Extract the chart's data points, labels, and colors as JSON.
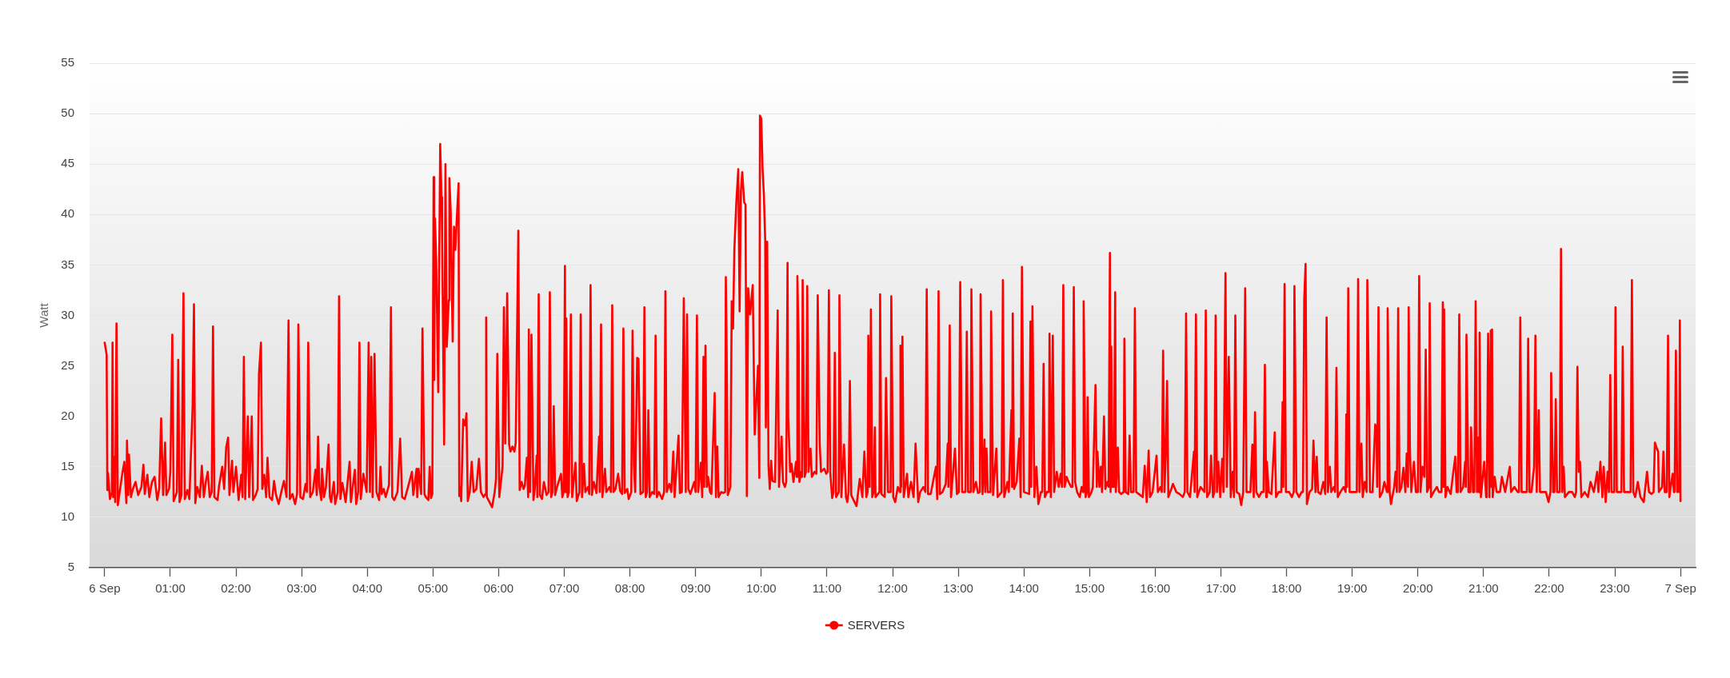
{
  "chart_data": {
    "type": "line",
    "ylabel": "Watt",
    "x": [
      0,
      0.03,
      0.04,
      0.05,
      0.08,
      0.11,
      0.12,
      0.13,
      0.15,
      0.16,
      0.18,
      0.2,
      0.27,
      0.3,
      0.33,
      0.34,
      0.36,
      0.37,
      0.4,
      0.43,
      0.47,
      0.51,
      0.56,
      0.59,
      0.61,
      0.65,
      0.68,
      0.72,
      0.76,
      0.8,
      0.83,
      0.86,
      0.89,
      0.92,
      0.94,
      0.98,
      1,
      1.03,
      1.05,
      1.1,
      1.12,
      1.14,
      1.17,
      1.2,
      1.22,
      1.26,
      1.29,
      1.34,
      1.36,
      1.38,
      1.41,
      1.45,
      1.48,
      1.51,
      1.54,
      1.57,
      1.6,
      1.63,
      1.65,
      1.67,
      1.72,
      1.74,
      1.79,
      1.82,
      1.85,
      1.88,
      1.9,
      1.94,
      1.96,
      2,
      2.04,
      2.08,
      2.1,
      2.12,
      2.14,
      2.18,
      2.2,
      2.24,
      2.26,
      2.3,
      2.33,
      2.35,
      2.38,
      2.4,
      2.43,
      2.46,
      2.48,
      2.51,
      2.55,
      2.58,
      2.61,
      2.65,
      2.69,
      2.73,
      2.77,
      2.8,
      2.82,
      2.86,
      2.9,
      2.93,
      2.95,
      2.98,
      3.02,
      3.06,
      3.08,
      3.1,
      3.13,
      3.17,
      3.21,
      3.23,
      3.25,
      3.27,
      3.3,
      3.31,
      3.34,
      3.37,
      3.41,
      3.43,
      3.45,
      3.49,
      3.51,
      3.55,
      3.57,
      3.59,
      3.62,
      3.67,
      3.73,
      3.75,
      3.81,
      3.83,
      3.86,
      3.88,
      3.9,
      3.94,
      3.99,
      4.02,
      4.04,
      4.06,
      4.08,
      4.11,
      4.14,
      4.18,
      4.2,
      4.22,
      4.25,
      4.28,
      4.33,
      4.34,
      4.36,
      4.38,
      4.41,
      4.46,
      4.5,
      4.53,
      4.57,
      4.62,
      4.68,
      4.7,
      4.75,
      4.76,
      4.78,
      4.82,
      4.84,
      4.87,
      4.89,
      4.93,
      4.95,
      4.97,
      4.99,
      5.01,
      5.02,
      5.03,
      5.05,
      5.08,
      5.09,
      5.11,
      5.13,
      5.14,
      5.17,
      5.19,
      5.21,
      5.24,
      5.25,
      5.27,
      5.3,
      5.32,
      5.34,
      5.36,
      5.39,
      5.4,
      5.41,
      5.43,
      5.46,
      5.49,
      5.51,
      5.53,
      5.56,
      5.59,
      5.62,
      5.66,
      5.7,
      5.73,
      5.77,
      5.8,
      5.81,
      5.82,
      5.86,
      5.9,
      5.94,
      5.96,
      5.98,
      6.01,
      6.04,
      6.06,
      6.08,
      6.1,
      6.13,
      6.16,
      6.18,
      6.21,
      6.24,
      6.26,
      6.3,
      6.32,
      6.35,
      6.38,
      6.4,
      6.43,
      6.45,
      6.46,
      6.48,
      6.5,
      6.53,
      6.55,
      6.58,
      6.59,
      6.61,
      6.63,
      6.66,
      6.69,
      6.73,
      6.76,
      6.78,
      6.8,
      6.82,
      6.84,
      6.86,
      6.89,
      6.95,
      6.97,
      6.99,
      7.01,
      7.02,
      7.03,
      7.05,
      7.07,
      7.1,
      7.12,
      7.17,
      7.19,
      7.23,
      7.25,
      7.27,
      7.3,
      7.32,
      7.36,
      7.38,
      7.4,
      7.42,
      7.45,
      7.49,
      7.53,
      7.54,
      7.56,
      7.58,
      7.62,
      7.64,
      7.69,
      7.71,
      7.73,
      7.75,
      7.78,
      7.82,
      7.85,
      7.88,
      7.9,
      7.92,
      7.96,
      7.98,
      8.02,
      8.04,
      8.06,
      8.08,
      8.11,
      8.13,
      8.16,
      8.2,
      8.22,
      8.24,
      8.26,
      8.28,
      8.3,
      8.34,
      8.37,
      8.39,
      8.41,
      8.44,
      8.49,
      8.52,
      8.54,
      8.56,
      8.6,
      8.63,
      8.66,
      8.68,
      8.74,
      8.76,
      8.79,
      8.82,
      8.85,
      8.87,
      8.89,
      8.92,
      8.98,
      9,
      9.02,
      9.04,
      9.08,
      9.1,
      9.12,
      9.13,
      9.15,
      9.17,
      9.19,
      9.22,
      9.24,
      9.27,
      9.29,
      9.31,
      9.33,
      9.35,
      9.39,
      9.42,
      9.45,
      9.46,
      9.47,
      9.49,
      9.53,
      9.55,
      9.57,
      9.59,
      9.62,
      9.65,
      9.67,
      9.69,
      9.71,
      9.74,
      9.76,
      9.78,
      9.8,
      9.83,
      9.87,
      9.9,
      9.95,
      9.97,
      9.98,
      10,
      10.02,
      10.04,
      10.06,
      10.07,
      10.09,
      10.11,
      10.13,
      10.15,
      10.17,
      10.21,
      10.25,
      10.27,
      10.31,
      10.33,
      10.36,
      10.38,
      10.4,
      10.41,
      10.44,
      10.46,
      10.49,
      10.53,
      10.54,
      10.55,
      10.57,
      10.58,
      10.61,
      10.62,
      10.63,
      10.66,
      10.68,
      10.7,
      10.72,
      10.75,
      10.77,
      10.81,
      10.84,
      10.86,
      10.89,
      10.91,
      10.96,
      10.99,
      11.01,
      11.03,
      11.05,
      11.08,
      11.1,
      11.12,
      11.14,
      11.18,
      11.19,
      11.22,
      11.26,
      11.29,
      11.31,
      11.33,
      11.35,
      11.37,
      11.42,
      11.45,
      11.5,
      11.54,
      11.57,
      11.6,
      11.62,
      11.63,
      11.65,
      11.67,
      11.69,
      11.71,
      11.73,
      11.74,
      11.8,
      11.81,
      11.83,
      11.88,
      11.9,
      11.93,
      11.97,
      11.98,
      12.01,
      12.04,
      12.08,
      12.11,
      12.12,
      12.13,
      12.15,
      12.17,
      12.22,
      12.24,
      12.28,
      12.32,
      12.35,
      12.39,
      12.42,
      12.47,
      12.5,
      12.52,
      12.54,
      12.58,
      12.66,
      12.68,
      12.7,
      12.72,
      12.76,
      12.81,
      12.84,
      12.85,
      12.87,
      12.89,
      12.95,
      12.98,
      13.01,
      13.03,
      13.06,
      13.11,
      13.13,
      13.15,
      13.19,
      13.2,
      13.23,
      13.27,
      13.3,
      13.33,
      13.34,
      13.37,
      13.4,
      13.41,
      13.43,
      13.45,
      13.49,
      13.5,
      13.53,
      13.58,
      13.6,
      13.66,
      13.68,
      13.7,
      13.75,
      13.77,
      13.81,
      13.82,
      13.83,
      13.85,
      13.89,
      13.93,
      13.95,
      13.97,
      14,
      14.08,
      14.1,
      14.11,
      14.13,
      14.16,
      14.19,
      14.22,
      14.26,
      14.28,
      14.3,
      14.32,
      14.35,
      14.38,
      14.39,
      14.41,
      14.44,
      14.46,
      14.5,
      14.53,
      14.56,
      14.58,
      14.6,
      14.62,
      14.65,
      14.68,
      14.72,
      14.74,
      14.76,
      14.78,
      14.81,
      14.85,
      14.88,
      14.9,
      14.91,
      14.94,
      14.96,
      14.97,
      14.99,
      15.03,
      15.05,
      15.09,
      15.11,
      15.12,
      15.15,
      15.17,
      15.19,
      15.22,
      15.24,
      15.27,
      15.29,
      15.31,
      15.32,
      15.33,
      15.35,
      15.37,
      15.39,
      15.4,
      15.43,
      15.45,
      15.48,
      15.52,
      15.53,
      15.55,
      15.59,
      15.61,
      15.63,
      15.67,
      15.69,
      15.71,
      15.75,
      15.81,
      15.84,
      15.87,
      15.9,
      15.92,
      15.96,
      16.02,
      16.04,
      16.08,
      16.1,
      16.12,
      16.14,
      16.16,
      16.18,
      16.2,
      16.24,
      16.27,
      16.32,
      16.37,
      16.42,
      16.45,
      16.47,
      16.49,
      16.53,
      16.59,
      16.6,
      16.62,
      16.64,
      16.69,
      16.75,
      16.77,
      16.79,
      16.83,
      16.85,
      16.88,
      16.9,
      16.92,
      16.94,
      16.96,
      16.99,
      17.02,
      17.04,
      17.07,
      17.09,
      17.12,
      17.15,
      17.18,
      17.2,
      17.22,
      17.24,
      17.28,
      17.31,
      17.34,
      17.37,
      17.39,
      17.45,
      17.48,
      17.5,
      17.52,
      17.54,
      17.58,
      17.62,
      17.65,
      17.67,
      17.69,
      17.7,
      17.73,
      17.77,
      17.82,
      17.84,
      17.88,
      17.92,
      17.94,
      17.95,
      17.97,
      17.99,
      18.04,
      18.08,
      18.11,
      18.12,
      18.15,
      18.19,
      18.23,
      18.25,
      18.27,
      18.29,
      18.31,
      18.35,
      18.39,
      18.41,
      18.44,
      18.46,
      18.48,
      18.52,
      18.56,
      18.59,
      18.61,
      18.63,
      18.66,
      18.68,
      18.72,
      18.74,
      18.76,
      18.78,
      18.82,
      18.87,
      18.9,
      18.91,
      18.92,
      18.94,
      18.96,
      19.01,
      19.07,
      19.09,
      19.11,
      19.14,
      19.16,
      19.19,
      19.22,
      19.23,
      19.26,
      19.27,
      19.31,
      19.35,
      19.37,
      19.38,
      19.4,
      19.42,
      19.46,
      19.49,
      19.53,
      19.54,
      19.57,
      19.59,
      19.64,
      19.66,
      19.68,
      19.7,
      19.72,
      19.75,
      19.78,
      19.81,
      19.83,
      19.85,
      19.86,
      19.88,
      19.9,
      19.94,
      19.97,
      20,
      20.02,
      20.04,
      20.07,
      20.1,
      20.12,
      20.14,
      20.17,
      20.18,
      20.2,
      20.24,
      20.29,
      20.32,
      20.36,
      20.38,
      20.39,
      20.4,
      20.42,
      20.45,
      20.5,
      20.54,
      20.57,
      20.59,
      20.61,
      20.63,
      20.65,
      20.69,
      20.72,
      20.73,
      20.74,
      20.77,
      20.8,
      20.81,
      20.84,
      20.86,
      20.88,
      20.9,
      20.92,
      20.93,
      20.94,
      20.96,
      21.01,
      21.04,
      21.05,
      21.07,
      21.09,
      21.11,
      21.12,
      21.13,
      21.14,
      21.17,
      21.2,
      21.25,
      21.28,
      21.33,
      21.4,
      21.42,
      21.47,
      21.52,
      21.54,
      21.56,
      21.58,
      21.63,
      21.66,
      21.68,
      21.7,
      21.73,
      21.77,
      21.79,
      21.81,
      21.84,
      21.86,
      21.9,
      21.95,
      21.99,
      22.02,
      22.03,
      22.06,
      22.08,
      22.1,
      22.12,
      22.16,
      22.18,
      22.2,
      22.22,
      22.24,
      22.3,
      22.35,
      22.39,
      22.41,
      22.43,
      22.45,
      22.47,
      22.49,
      22.54,
      22.59,
      22.63,
      22.68,
      22.73,
      22.75,
      22.78,
      22.81,
      22.83,
      22.86,
      22.89,
      22.91,
      22.93,
      22.95,
      22.99,
      23.01,
      23.03,
      23.07,
      23.1,
      23.12,
      23.14,
      23.18,
      23.24,
      23.26,
      23.28,
      23.31,
      23.35,
      23.39,
      23.44,
      23.49,
      23.52,
      23.56,
      23.59,
      23.61,
      23.64,
      23.66,
      23.67,
      23.72,
      23.74,
      23.76,
      23.79,
      23.81,
      23.83,
      23.88,
      23.9,
      23.91,
      23.93,
      23.95,
      23.97,
      23.98,
      23.99,
      24
    ],
    "series": [
      {
        "name": "SERVERS",
        "color": "#ff0000",
        "values": [
          27.3,
          26.1,
          12.7,
          14.4,
          11.8,
          12.5,
          27.3,
          12,
          16,
          11.5,
          29.2,
          11.2,
          14.4,
          15.5,
          11.4,
          17.6,
          12.2,
          16.2,
          12,
          12.8,
          13.5,
          12.2,
          13,
          15.2,
          12.3,
          14.2,
          12,
          13.5,
          14,
          11.7,
          12.8,
          19.8,
          12.2,
          17.4,
          12.2,
          12.8,
          14.5,
          28.1,
          11.6,
          12.5,
          25.6,
          11.5,
          12.2,
          32.2,
          11.8,
          12.7,
          11.8,
          21.1,
          31.1,
          11.4,
          13,
          12,
          15.1,
          12,
          13.5,
          14.5,
          12,
          12.5,
          28.9,
          12,
          11.7,
          13,
          15,
          12.8,
          16.9,
          17.9,
          12.2,
          15.6,
          12.5,
          15,
          11.7,
          14.2,
          12,
          25.9,
          11.8,
          20,
          12,
          20,
          11.7,
          12.2,
          12.8,
          24.2,
          27.3,
          12.8,
          14.2,
          12,
          15.9,
          12,
          11.7,
          13.6,
          12.2,
          11.3,
          12.5,
          13.6,
          12,
          29.5,
          11.8,
          12.3,
          11.3,
          12.3,
          29.1,
          12,
          11.8,
          13.3,
          12.5,
          27.3,
          12,
          12.5,
          14.7,
          12.2,
          18,
          13,
          11.7,
          14.8,
          12,
          13,
          17.2,
          12,
          11.5,
          13.5,
          11.3,
          12.5,
          31.9,
          11.8,
          13.4,
          11.5,
          15.5,
          11.5,
          14.7,
          11.3,
          12.5,
          27.3,
          11.8,
          14.3,
          12.5,
          27.3,
          12.5,
          25.9,
          12,
          26.2,
          12.5,
          11.7,
          15,
          12.3,
          12.8,
          12,
          13.2,
          16.8,
          30.8,
          12,
          11.7,
          12.5,
          17.8,
          12,
          11.8,
          13,
          14.5,
          12.2,
          14.8,
          12,
          14.8,
          12.3,
          28.7,
          12.3,
          12,
          11.7,
          15,
          11.9,
          12.3,
          43.7,
          23.6,
          39.6,
          35.2,
          22.4,
          31.2,
          47,
          41.7,
          37.5,
          17.2,
          45,
          26.9,
          31.5,
          43.6,
          40.3,
          27.4,
          38.8,
          36.5,
          39.2,
          43.1,
          12.1,
          13,
          11.6,
          19.7,
          19.1,
          20.3,
          11.6,
          12.5,
          15.5,
          12.5,
          12.8,
          15.8,
          12.5,
          12,
          12.3,
          29.8,
          12,
          11.5,
          11,
          12.5,
          13.8,
          26.2,
          12,
          13.8,
          15,
          30.8,
          17.3,
          32.2,
          17.2,
          16.5,
          17,
          16.5,
          17.4,
          38.4,
          12.7,
          13.5,
          12.8,
          13.2,
          15.9,
          12,
          28.6,
          12.5,
          28.1,
          11.7,
          12.8,
          16.1,
          12,
          32.1,
          12.2,
          11.8,
          13.5,
          12.2,
          12.5,
          32.3,
          12,
          12.5,
          21,
          12.2,
          13,
          14.3,
          12,
          12.5,
          34.9,
          12.5,
          29.7,
          12,
          12.5,
          30.1,
          12,
          15.4,
          11.6,
          12.5,
          30.1,
          12,
          15.3,
          12.5,
          13,
          12.3,
          33,
          12.2,
          13.5,
          12.4,
          18,
          12.5,
          29.1,
          12,
          14.8,
          12.5,
          13,
          12.5,
          31,
          12.5,
          12.8,
          14.3,
          12.6,
          12.3,
          28.7,
          12.4,
          12.8,
          11.8,
          12.5,
          28.5,
          15.2,
          12.5,
          25.8,
          25.7,
          12.3,
          12.5,
          30.8,
          12,
          12.5,
          20.6,
          12,
          12.5,
          12.3,
          28,
          12,
          12.5,
          11.8,
          12.5,
          32.4,
          12.5,
          13.3,
          12.5,
          16.5,
          12,
          18.1,
          12.4,
          12.5,
          31.7,
          12.5,
          30.1,
          12.8,
          12.3,
          13.5,
          12.5,
          30,
          12.5,
          15.4,
          12,
          25.9,
          13,
          27,
          13,
          14,
          12.5,
          12.3,
          18.2,
          22.3,
          12,
          17,
          12,
          12.5,
          12.4,
          12.5,
          33.8,
          28.7,
          12.2,
          13,
          31.4,
          28.7,
          36.5,
          41.2,
          44.5,
          30.4,
          42.4,
          44.2,
          41.2,
          41,
          12.1,
          32.7,
          30.1,
          33,
          18.2,
          25,
          13.9,
          49.8,
          49.5,
          44.5,
          41.9,
          37.4,
          18.9,
          37.3,
          15.1,
          12.8,
          15.6,
          13.6,
          13.5,
          30.5,
          13,
          18,
          13.5,
          13,
          13.5,
          35.2,
          20,
          14.5,
          15.3,
          13.5,
          15.5,
          14,
          33.9,
          27.1,
          13.5,
          14.5,
          14,
          33.5,
          14,
          14.5,
          32.9,
          14.5,
          16.8,
          14,
          14.5,
          14.3,
          32,
          17.3,
          14.5,
          14.8,
          14.3,
          14.5,
          32.5,
          14.5,
          11.9,
          12.5,
          26.3,
          12,
          12.5,
          32,
          12,
          17.2,
          12,
          11.5,
          12.5,
          23.5,
          12.2,
          11.5,
          11.1,
          13.8,
          12,
          16.5,
          12,
          12.5,
          28,
          13,
          30.6,
          12,
          12.5,
          18.9,
          12,
          12.5,
          32.1,
          12.3,
          12,
          23.8,
          12.5,
          12.5,
          31.9,
          12,
          11.5,
          13,
          12.5,
          27,
          13,
          27.9,
          12,
          14.3,
          12,
          13.5,
          12,
          17.3,
          11.5,
          12.5,
          13,
          12.5,
          32.6,
          12.3,
          12.3,
          15,
          11.8,
          32.4,
          12.3,
          12.5,
          13.3,
          17.3,
          13,
          29,
          12,
          16.8,
          12.3,
          12.5,
          33.3,
          12.5,
          12.5,
          28.4,
          12.5,
          12.5,
          32.6,
          12.5,
          13.5,
          12.4,
          12.5,
          32.1,
          12.3,
          17.7,
          12.5,
          16.8,
          12.5,
          12.5,
          30.4,
          12.2,
          16.8,
          12,
          12.5,
          33.5,
          12,
          13.5,
          12.5,
          20.6,
          13,
          30.2,
          12.8,
          13.5,
          17.8,
          12,
          34.8,
          12.5,
          12.3,
          29.4,
          13,
          30.9,
          12,
          15,
          11.3,
          12.5,
          12.5,
          25.2,
          12,
          12.5,
          12.5,
          28.2,
          12,
          28,
          12.5,
          14.5,
          13,
          14.3,
          13,
          33,
          13,
          14,
          13.5,
          13,
          13,
          32.8,
          13.5,
          12.5,
          12,
          13,
          12.5,
          31.4,
          12,
          12.5,
          21.9,
          12,
          12.5,
          13,
          23.1,
          13,
          16.5,
          13,
          15,
          12.5,
          20,
          12.8,
          13.5,
          13,
          36.2,
          12.5,
          26.9,
          13,
          13,
          32.3,
          12.5,
          16.9,
          12.5,
          12.3,
          12.5,
          27.7,
          12.5,
          12.3,
          18.1,
          12.5,
          12.5,
          30.7,
          12.5,
          12.3,
          12,
          15.1,
          11.5,
          16.6,
          12,
          12.5,
          16.1,
          12.5,
          13,
          12.5,
          26.5,
          12.5,
          16,
          23.5,
          12,
          12.7,
          13.3,
          12.5,
          12.3,
          12,
          12.5,
          30.2,
          12.5,
          12,
          16.5,
          12.5,
          30.1,
          12,
          13,
          12.5,
          30.5,
          12,
          12.5,
          16.1,
          12,
          12.5,
          30,
          12.5,
          15.5,
          12,
          15.8,
          12.5,
          34.2,
          13,
          25.9,
          12,
          14.5,
          12,
          30,
          12.5,
          12.3,
          11.2,
          12.5,
          32.7,
          12.5,
          12.5,
          17.2,
          12,
          20.4,
          12.5,
          12,
          12.5,
          12.5,
          25.1,
          12,
          15.5,
          12.5,
          12.3,
          18.4,
          12,
          12.5,
          12.5,
          21.4,
          13,
          33.1,
          12.5,
          12.5,
          12,
          12.5,
          32.9,
          12.5,
          12,
          12.5,
          12.5,
          31.7,
          35.1,
          11.3,
          12.5,
          12.8,
          17.6,
          12.5,
          16,
          12.5,
          12.3,
          13.5,
          12.3,
          29.8,
          12.5,
          15,
          12.5,
          13,
          12.5,
          24.8,
          12,
          12.5,
          13,
          12.5,
          20.2,
          13,
          32.7,
          12.5,
          12.5,
          12.5,
          33.6,
          12.5,
          17.3,
          12,
          13.5,
          12.5,
          33.5,
          19.5,
          12.5,
          12.5,
          19.2,
          18.8,
          13,
          30.8,
          12,
          12.5,
          13.5,
          12.5,
          30.7,
          12.5,
          11.3,
          13,
          14.5,
          12.5,
          30.7,
          12.5,
          13,
          14.9,
          12.5,
          16.3,
          13,
          30.8,
          16.5,
          12.5,
          15.5,
          12.5,
          12.5,
          33.9,
          12.5,
          15,
          14,
          26.6,
          12.5,
          13,
          31.2,
          12,
          12.5,
          13,
          12.5,
          12.5,
          31.3,
          13,
          30.6,
          12,
          13,
          12.3,
          14.5,
          16,
          12.5,
          12.5,
          30.1,
          12.5,
          13,
          15.5,
          13,
          28.1,
          12.5,
          12.5,
          18.9,
          12.5,
          12.5,
          31.4,
          12.5,
          17.9,
          12.5,
          28.3,
          12,
          15.5,
          12,
          12.5,
          28.2,
          12,
          28.5,
          13,
          28.6,
          12,
          14,
          12.5,
          12.5,
          14,
          12.5,
          15,
          12.5,
          13,
          12.5,
          12.5,
          29.8,
          12.5,
          12.5,
          12.5,
          27.7,
          12.5,
          12.5,
          15,
          28,
          12.5,
          20.6,
          12.5,
          12.5,
          12.5,
          11.5,
          12.5,
          24.3,
          12.5,
          12.5,
          21.7,
          12.5,
          12.5,
          36.6,
          12.5,
          15,
          12,
          12.5,
          12.5,
          12,
          12.5,
          24.9,
          14.5,
          15.5,
          12,
          12.5,
          12,
          13.5,
          12.5,
          14.5,
          12.5,
          15.5,
          12,
          15,
          11.5,
          14.5,
          12.5,
          24.1,
          12.5,
          12.5,
          30.8,
          12.5,
          12.5,
          12.5,
          26.9,
          12.5,
          12.5,
          12.5,
          33.5,
          12.5,
          12,
          13.5,
          12,
          11.5,
          14.5,
          12.5,
          12.3,
          12.5,
          17.4,
          16.8,
          16.5,
          12.5,
          13,
          16.5,
          12.5,
          12.5,
          28,
          12,
          14.3,
          12.5,
          12.5,
          26.5,
          12.5,
          13.7,
          12.5,
          29.5,
          11.6
        ]
      }
    ],
    "xlim": [
      -0.23,
      24.23
    ],
    "xticks": [
      {
        "value": 0,
        "label": "6 Sep"
      },
      {
        "value": 1,
        "label": "01:00"
      },
      {
        "value": 2,
        "label": "02:00"
      },
      {
        "value": 3,
        "label": "03:00"
      },
      {
        "value": 4,
        "label": "04:00"
      },
      {
        "value": 5,
        "label": "05:00"
      },
      {
        "value": 6,
        "label": "06:00"
      },
      {
        "value": 7,
        "label": "07:00"
      },
      {
        "value": 8,
        "label": "08:00"
      },
      {
        "value": 9,
        "label": "09:00"
      },
      {
        "value": 10,
        "label": "10:00"
      },
      {
        "value": 11,
        "label": "11:00"
      },
      {
        "value": 12,
        "label": "12:00"
      },
      {
        "value": 13,
        "label": "13:00"
      },
      {
        "value": 14,
        "label": "14:00"
      },
      {
        "value": 15,
        "label": "15:00"
      },
      {
        "value": 16,
        "label": "16:00"
      },
      {
        "value": 17,
        "label": "17:00"
      },
      {
        "value": 18,
        "label": "18:00"
      },
      {
        "value": 19,
        "label": "19:00"
      },
      {
        "value": 20,
        "label": "20:00"
      },
      {
        "value": 21,
        "label": "21:00"
      },
      {
        "value": 22,
        "label": "22:00"
      },
      {
        "value": 23,
        "label": "23:00"
      },
      {
        "value": 24,
        "label": "7 Sep"
      }
    ],
    "ylim": [
      5,
      55
    ],
    "yticks": [
      5,
      10,
      15,
      20,
      25,
      30,
      35,
      40,
      45,
      50,
      55
    ],
    "grid": "y",
    "legend": "bottom",
    "marker": "none"
  }
}
